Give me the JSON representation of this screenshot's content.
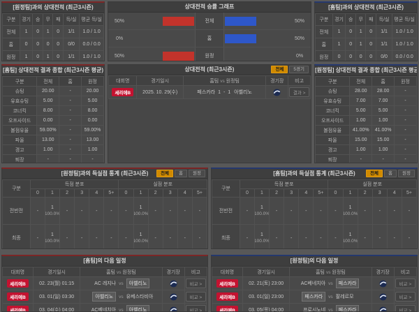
{
  "colors": {
    "accent_red": "#7c2626",
    "accent_blue": "#25386e",
    "bar_red": "#c2332b",
    "bar_blue": "#2e57c9",
    "badge_red": "#c41230",
    "tab_active_bg": "#d08a00"
  },
  "h2h_left": {
    "title": "[원정팀]과의 상대전적 (최근3시즌)",
    "headers": [
      "구분",
      "경기",
      "승",
      "무",
      "패",
      "득/실",
      "평균 득/실"
    ],
    "rows": [
      [
        "전체",
        "1",
        "0",
        "1",
        "0",
        "1/1",
        "1.0 / 1.0"
      ],
      [
        "홈",
        "0",
        "0",
        "0",
        "0",
        "0/0",
        "0.0 / 0.0"
      ],
      [
        "원정",
        "1",
        "0",
        "1",
        "0",
        "1/1",
        "1.0 / 1.0"
      ]
    ]
  },
  "graph": {
    "title": "상대전적 승률 그래프",
    "rows": [
      {
        "label": "전체",
        "left_pct": "50%",
        "left_val": 50,
        "right_pct": "50%",
        "right_val": 50
      },
      {
        "label": "홈",
        "left_pct": "0%",
        "left_val": 0,
        "right_pct": "50%",
        "right_val": 50
      },
      {
        "label": "원정",
        "left_pct": "50%",
        "left_val": 50,
        "right_pct": "0%",
        "right_val": 0
      }
    ]
  },
  "h2h_right": {
    "title": "[홈팀]과의 상대전적 (최근3시즌)",
    "headers": [
      "구분",
      "경기",
      "승",
      "무",
      "패",
      "득/실",
      "평균 득/실"
    ],
    "rows": [
      [
        "전체",
        "1",
        "0",
        "1",
        "0",
        "1/1",
        "1.0 / 1.0"
      ],
      [
        "홈",
        "1",
        "0",
        "1",
        "0",
        "1/1",
        "1.0 / 1.0"
      ],
      [
        "원정",
        "0",
        "0",
        "0",
        "0",
        "0/0",
        "0.0 / 0.0"
      ]
    ]
  },
  "stats_left": {
    "title": "[홈팀] 상대전적 결과 종합 (최근3시즌 평균)",
    "headers": [
      "구분",
      "전체",
      "홈",
      "원정"
    ],
    "rows": [
      [
        "슈팅",
        "20.00",
        "-",
        "20.00"
      ],
      [
        "유효슈팅",
        "5.00",
        "-",
        "5.00"
      ],
      [
        "코너킥",
        "8.00",
        "-",
        "8.00"
      ],
      [
        "오프사이드",
        "0.00",
        "-",
        "0.00"
      ],
      [
        "볼점유율",
        "59.00%",
        "-",
        "59.00%"
      ],
      [
        "파울",
        "13.00",
        "-",
        "13.00"
      ],
      [
        "경고",
        "1.00",
        "-",
        "1.00"
      ],
      [
        "퇴장",
        "-",
        "-",
        "-"
      ]
    ]
  },
  "matches": {
    "title": "상대전적 (최근3시즌)",
    "tabs": [
      "전체",
      "5경기"
    ],
    "headers": [
      "대회명",
      "경기일시",
      "홈팀",
      "vs",
      "원정팀",
      "경기장",
      "비고"
    ],
    "rows": [
      {
        "league": "세리에B",
        "date": "2025. 10. 29(수)",
        "home": "페스카라",
        "score": "1 - 1",
        "away": "아벨리노",
        "action": "결과 >"
      }
    ]
  },
  "stats_right": {
    "title": "[원정팀] 상대전적 결과 종합 (최근3시즌 평균)",
    "headers": [
      "구분",
      "전체",
      "홈",
      "원정"
    ],
    "rows": [
      [
        "슈팅",
        "28.00",
        "28.00",
        "-"
      ],
      [
        "유효슈팅",
        "7.00",
        "7.00",
        "-"
      ],
      [
        "코너킥",
        "5.00",
        "5.00",
        "-"
      ],
      [
        "오프사이드",
        "1.00",
        "1.00",
        "-"
      ],
      [
        "볼점유율",
        "41.00%",
        "41.00%",
        "-"
      ],
      [
        "파울",
        "15.00",
        "15.00",
        "-"
      ],
      [
        "경고",
        "1.00",
        "1.00",
        "-"
      ],
      [
        "퇴장",
        "-",
        "-",
        "-"
      ]
    ]
  },
  "goals_left": {
    "title": "[원정팀]과의 득실점 통계 (최근3시즌)",
    "tabs": [
      "전체",
      "홈",
      "원정"
    ],
    "col_label": "구분",
    "scored_label": "득점 분포",
    "conceded_label": "실점 분포",
    "bins": [
      "0",
      "1",
      "2",
      "3",
      "4",
      "5+"
    ],
    "rows": [
      {
        "label": "전반전",
        "scored": [
          "-",
          "1",
          "-",
          "-",
          "-",
          "-"
        ],
        "scored_pct": [
          "",
          "100.0%",
          "",
          "",
          "",
          ""
        ],
        "conceded": [
          "-",
          "1",
          "-",
          "-",
          "-",
          "-"
        ],
        "conceded_pct": [
          "",
          "100.0%",
          "",
          "",
          "",
          ""
        ]
      },
      {
        "label": "최종",
        "scored": [
          "-",
          "1",
          "-",
          "-",
          "-",
          "-"
        ],
        "scored_pct": [
          "",
          "100.0%",
          "",
          "",
          "",
          ""
        ],
        "conceded": [
          "-",
          "1",
          "-",
          "-",
          "-",
          "-"
        ],
        "conceded_pct": [
          "",
          "100.0%",
          "",
          "",
          "",
          ""
        ]
      }
    ]
  },
  "goals_right": {
    "title": "[홈팀]과의 득실점 통계 (최근3시즌)",
    "tabs": [
      "전체",
      "홈",
      "원정"
    ],
    "col_label": "구분",
    "scored_label": "득점 분포",
    "conceded_label": "실점 분포",
    "bins": [
      "0",
      "1",
      "2",
      "3",
      "4",
      "5+"
    ],
    "rows": [
      {
        "label": "전반전",
        "scored": [
          "-",
          "1",
          "-",
          "-",
          "-",
          "-"
        ],
        "scored_pct": [
          "",
          "100.0%",
          "",
          "",
          "",
          ""
        ],
        "conceded": [
          "-",
          "1",
          "-",
          "-",
          "-",
          "-"
        ],
        "conceded_pct": [
          "",
          "100.0%",
          "",
          "",
          "",
          ""
        ]
      },
      {
        "label": "최종",
        "scored": [
          "-",
          "1",
          "-",
          "-",
          "-",
          "-"
        ],
        "scored_pct": [
          "",
          "100.0%",
          "",
          "",
          "",
          ""
        ],
        "conceded": [
          "-",
          "1",
          "-",
          "-",
          "-",
          "-"
        ],
        "conceded_pct": [
          "",
          "100.0%",
          "",
          "",
          "",
          ""
        ]
      }
    ]
  },
  "schedule_left": {
    "title": "[홈팀]의 다음 일정",
    "headers": [
      "대회명",
      "경기일시",
      "홈팀",
      "vs",
      "원정팀",
      "경기장",
      "비고"
    ],
    "rows": [
      {
        "league": "세리에B",
        "date": "02. 23(월) 01:15",
        "home": "AC 레지나",
        "away": "아벨리노",
        "home_hl": false,
        "away_hl": true,
        "action": "비교 >"
      },
      {
        "league": "세리에B",
        "date": "03. 01(일) 03:30",
        "home": "아벨리노",
        "away": "유베스타비아",
        "home_hl": true,
        "away_hl": false,
        "action": "비교 >"
      },
      {
        "league": "세리에B",
        "date": "03. 04(수) 04:00",
        "home": "AC베네치아",
        "away": "아벨리노",
        "home_hl": false,
        "away_hl": true,
        "action": "비교 >"
      }
    ]
  },
  "schedule_right": {
    "title": "[원정팀]의 다음 일정",
    "headers": [
      "대회명",
      "경기일시",
      "홈팀",
      "vs",
      "원정팀",
      "경기장",
      "비고"
    ],
    "rows": [
      {
        "league": "세리에B",
        "date": "02. 21(토) 23:00",
        "home": "AC베네치아",
        "away": "페스카라",
        "home_hl": false,
        "away_hl": true,
        "action": "비교 >"
      },
      {
        "league": "세리에B",
        "date": "03. 01(일) 23:00",
        "home": "페스카라",
        "away": "팔레르모",
        "home_hl": true,
        "away_hl": false,
        "action": "비교 >"
      },
      {
        "league": "세리에B",
        "date": "03. 05(목) 04:00",
        "home": "프로시노네",
        "away": "페스카라",
        "home_hl": false,
        "away_hl": true,
        "action": "비교 >"
      }
    ]
  }
}
